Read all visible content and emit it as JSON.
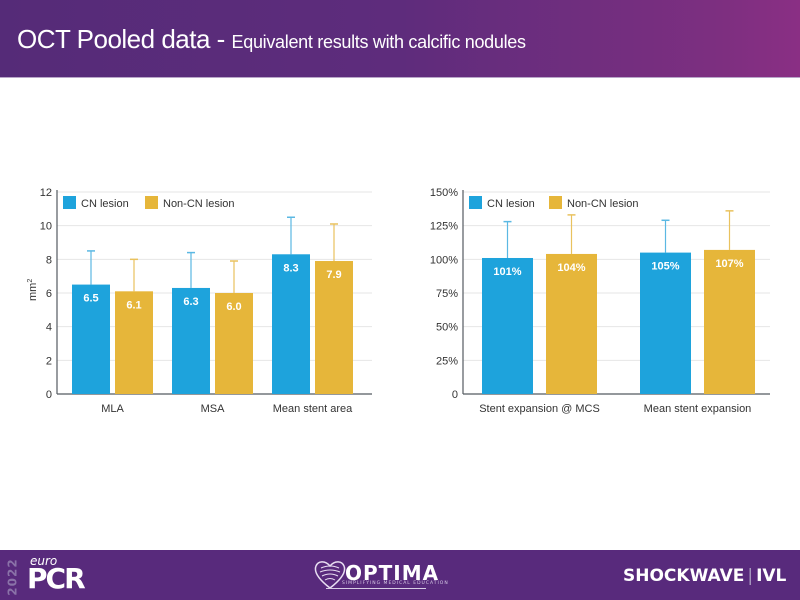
{
  "header": {
    "title_main": "OCT Pooled  data - ",
    "title_sub": "Equivalent results with calcific nodules"
  },
  "colors": {
    "cn": "#1ea3dc",
    "non_cn": "#e6b63a",
    "cn_err": "#5bb8e3",
    "non_cn_err": "#e9c25e",
    "grid": "#e6e6e6",
    "axis": "#555b61",
    "header_bg": "#5e2c7c",
    "footer_bg": "#582a7c"
  },
  "chart_data": [
    {
      "type": "bar",
      "title": "",
      "xlabel": "",
      "ylabel": "mm²",
      "ylabel_base": "mm",
      "ylabel_sup": "2",
      "ylim": [
        0,
        12
      ],
      "yticks": [
        0,
        2,
        4,
        6,
        8,
        10,
        12
      ],
      "ytick_labels": [
        "0",
        "2",
        "4",
        "6",
        "8",
        "10",
        "12"
      ],
      "grid": true,
      "legend": "top-left",
      "categories": [
        "MLA",
        "MSA",
        "Mean stent area"
      ],
      "series": [
        {
          "name": "CN lesion",
          "values": [
            6.5,
            6.3,
            8.3
          ],
          "labels": [
            "6.5",
            "6.3",
            "8.3"
          ],
          "error_top": [
            8.5,
            8.4,
            10.5
          ]
        },
        {
          "name": "Non-CN lesion",
          "values": [
            6.1,
            6.0,
            7.9
          ],
          "labels": [
            "6.1",
            "6.0",
            "7.9"
          ],
          "error_top": [
            8.0,
            7.9,
            10.1
          ]
        }
      ]
    },
    {
      "type": "bar",
      "title": "",
      "xlabel": "",
      "ylabel": "",
      "ylim": [
        0,
        150
      ],
      "yticks": [
        0,
        25,
        50,
        75,
        100,
        125,
        150
      ],
      "ytick_labels": [
        "0",
        "25%",
        "50%",
        "75%",
        "100%",
        "125%",
        "150%"
      ],
      "grid": true,
      "legend": "top-left",
      "categories": [
        "Stent expansion @ MCS",
        "Mean stent expansion"
      ],
      "series": [
        {
          "name": "CN lesion",
          "values": [
            101,
            105
          ],
          "labels": [
            "101%",
            "105%"
          ],
          "error_top": [
            128,
            129
          ]
        },
        {
          "name": "Non-CN lesion",
          "values": [
            104,
            107
          ],
          "labels": [
            "104%",
            "107%"
          ],
          "error_top": [
            133,
            136
          ]
        }
      ]
    }
  ],
  "footer": {
    "euro_year": "2022",
    "euro_label": "euro",
    "pcr_label": "PCR",
    "optima_label": "OPTIMA",
    "optima_tagline": "SIMPLIFYING MEDICAL EDUCATION",
    "shockwave_label": "SHOCKWAVE",
    "shockwave_sep": "|",
    "ivl_label": "IVL"
  }
}
